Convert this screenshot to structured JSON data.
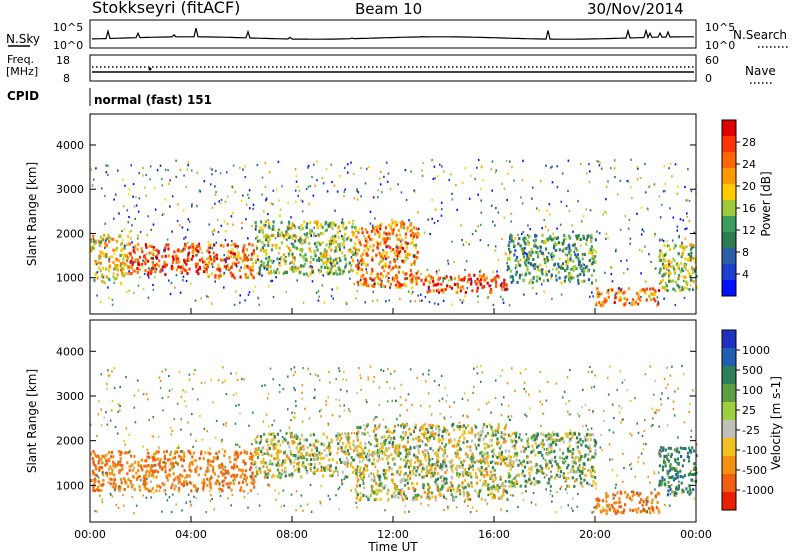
{
  "header": {
    "station": "Stokkseyri (fitACF)",
    "beam": "Beam 10",
    "date": "30/Nov/2014"
  },
  "sky_panel": {
    "left_label": "N.Sky",
    "left_ticks": [
      "10^5",
      "10^0"
    ],
    "right_label": "N.Search",
    "right_ticks": [
      "10^5",
      "10^0"
    ]
  },
  "freq_panel": {
    "left_label": "Freq.",
    "left_unit": "[MHz]",
    "left_ticks": [
      "18",
      "8"
    ],
    "right_label": "Nave",
    "right_ticks": [
      "60",
      "0"
    ]
  },
  "cpid": {
    "label": "CPID",
    "value": "normal (fast) 151"
  },
  "colorbars": {
    "power": {
      "label": "Power [dB]",
      "ticks": [
        "28",
        "24",
        "20",
        "16",
        "12",
        "8",
        "4"
      ],
      "colors": [
        "#e00000",
        "#ff3300",
        "#ff6600",
        "#ff9900",
        "#ffcc00",
        "#9ecb3a",
        "#3a9e5e",
        "#2e7d4e",
        "#2b5fa6",
        "#1f3fd0",
        "#0010ff"
      ]
    },
    "velocity": {
      "label": "Velocity [m s-1]",
      "ticks": [
        "1000",
        "500",
        "100",
        "25",
        "-25",
        "-100",
        "-500",
        "-1000"
      ],
      "colors": [
        "#2030c0",
        "#1f5fb0",
        "#2f7f5a",
        "#5aa040",
        "#9cd040",
        "#c0c0b8",
        "#f0c020",
        "#f59010",
        "#f06010",
        "#e82000"
      ]
    }
  },
  "chart_data": [
    {
      "type": "heatmap",
      "xlabel": "Time UT",
      "ylabel": "Slant Range [km]",
      "x_ticks": [
        "00:00",
        "04:00",
        "08:00",
        "12:00",
        "16:00",
        "20:00",
        "00:00"
      ],
      "xlim": [
        0,
        24
      ],
      "y_ticks": [
        1000,
        2000,
        3000,
        4000
      ],
      "ylim": [
        180,
        4700
      ],
      "field": "Power",
      "unit": "dB",
      "colorbar_ticks": [
        4,
        8,
        12,
        16,
        20,
        24,
        28
      ],
      "regions": [
        {
          "t": [
            0.0,
            1.5
          ],
          "r": [
            900,
            2000
          ],
          "value": 20
        },
        {
          "t": [
            1.5,
            4.5
          ],
          "r": [
            1100,
            1800
          ],
          "value": 28
        },
        {
          "t": [
            4.5,
            6.5
          ],
          "r": [
            1000,
            1800
          ],
          "value": 26
        },
        {
          "t": [
            6.5,
            10.5
          ],
          "r": [
            1100,
            2300
          ],
          "value": 16
        },
        {
          "t": [
            10.5,
            13.0
          ],
          "r": [
            800,
            2300
          ],
          "value": 24
        },
        {
          "t": [
            13.0,
            16.5
          ],
          "r": [
            700,
            1100
          ],
          "value": 28
        },
        {
          "t": [
            16.5,
            20.0
          ],
          "r": [
            900,
            2000
          ],
          "value": 12
        },
        {
          "t": [
            20.0,
            22.5
          ],
          "r": [
            400,
            800
          ],
          "value": 24
        },
        {
          "t": [
            22.5,
            24.0
          ],
          "r": [
            700,
            1800
          ],
          "value": 16
        }
      ]
    },
    {
      "type": "heatmap",
      "xlabel": "Time UT",
      "ylabel": "Slant Range [km]",
      "x_ticks": [
        "00:00",
        "04:00",
        "08:00",
        "12:00",
        "16:00",
        "20:00",
        "00:00"
      ],
      "xlim": [
        0,
        24
      ],
      "y_ticks": [
        1000,
        2000,
        3000,
        4000
      ],
      "ylim": [
        180,
        4700
      ],
      "field": "Velocity",
      "unit": "m s-1",
      "colorbar_ticks": [
        1000,
        500,
        100,
        25,
        -25,
        -100,
        -500,
        -1000
      ],
      "regions": [
        {
          "t": [
            0.0,
            6.5
          ],
          "r": [
            900,
            1800
          ],
          "value": -300
        },
        {
          "t": [
            6.5,
            10.5
          ],
          "r": [
            1200,
            2200
          ],
          "value": 0
        },
        {
          "t": [
            10.5,
            16.5
          ],
          "r": [
            700,
            2400
          ],
          "value": 0
        },
        {
          "t": [
            16.5,
            20.0
          ],
          "r": [
            1000,
            2200
          ],
          "value": 50
        },
        {
          "t": [
            20.0,
            22.5
          ],
          "r": [
            400,
            900
          ],
          "value": -300
        },
        {
          "t": [
            22.5,
            24.0
          ],
          "r": [
            800,
            1900
          ],
          "value": 200
        }
      ]
    }
  ]
}
